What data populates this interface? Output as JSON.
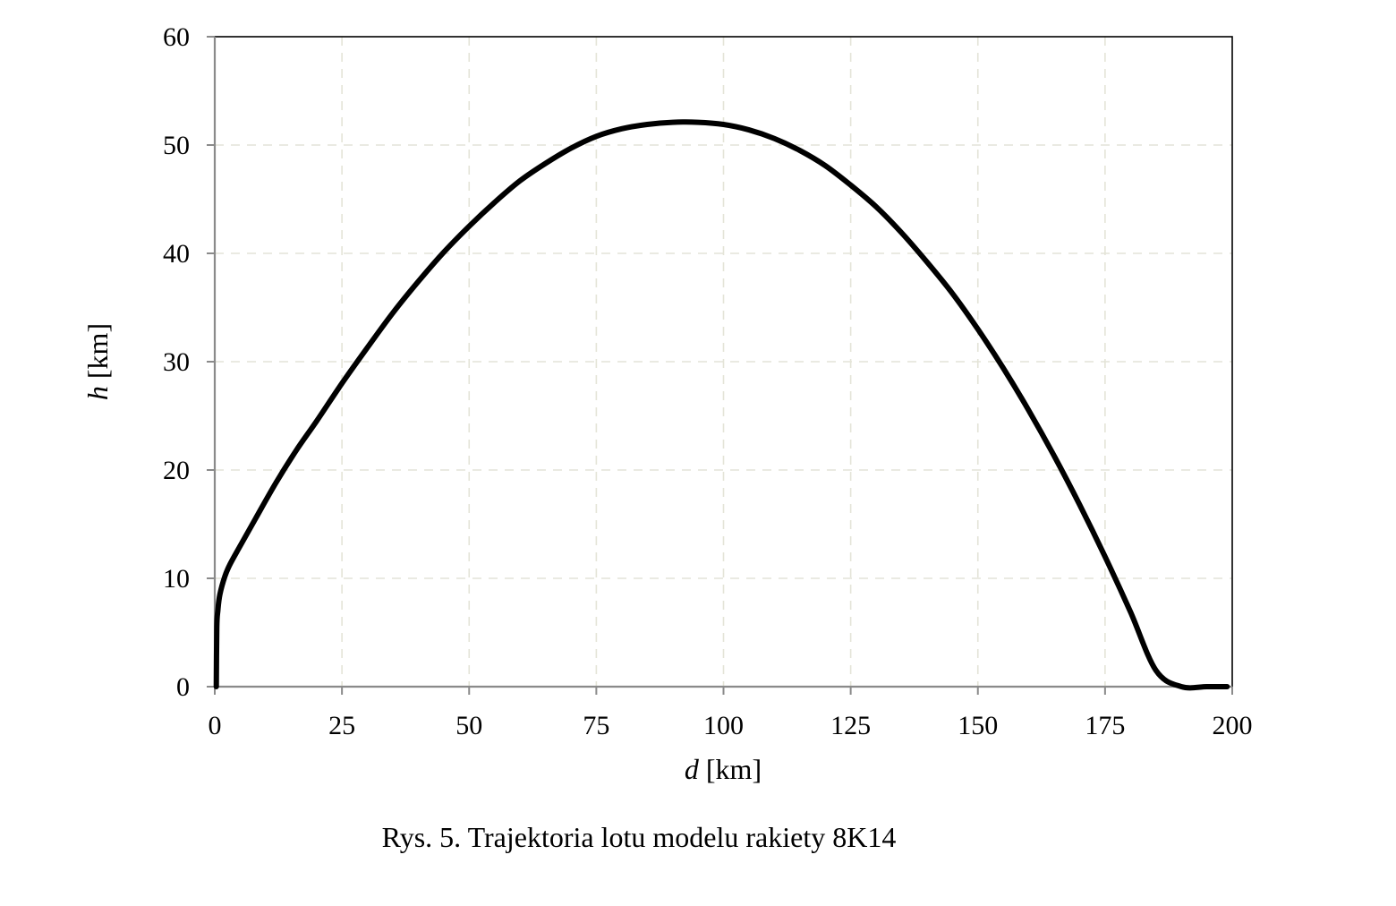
{
  "chart_data": {
    "type": "line",
    "title": "",
    "xlabel_italic": "d",
    "xlabel_unit": "[km]",
    "ylabel_italic": "h",
    "ylabel_unit": "[km]",
    "xlim": [
      0,
      200
    ],
    "ylim": [
      0,
      60
    ],
    "xticks": [
      0,
      25,
      50,
      75,
      100,
      125,
      150,
      175,
      200
    ],
    "yticks": [
      0,
      10,
      20,
      30,
      40,
      50,
      60
    ],
    "grid": true,
    "legend": "none",
    "series": [
      {
        "color": "#000000",
        "x": [
          0.3,
          0.4,
          0.6,
          1,
          2,
          3,
          5,
          8,
          12,
          16,
          20,
          25,
          30,
          35,
          40,
          45,
          50,
          55,
          60,
          65,
          70,
          75,
          80,
          85,
          90,
          95,
          100,
          105,
          110,
          115,
          120,
          125,
          130,
          135,
          140,
          145,
          150,
          155,
          160,
          165,
          170,
          175,
          180,
          185,
          190,
          195,
          199
        ],
        "y": [
          0,
          5.5,
          7,
          8.5,
          10.2,
          11.3,
          13,
          15.5,
          18.8,
          21.8,
          24.5,
          28,
          31.3,
          34.5,
          37.4,
          40.1,
          42.5,
          44.7,
          46.7,
          48.3,
          49.7,
          50.8,
          51.5,
          51.9,
          52.1,
          52.1,
          51.9,
          51.4,
          50.6,
          49.5,
          48.1,
          46.3,
          44.3,
          41.9,
          39.2,
          36.3,
          33.0,
          29.4,
          25.5,
          21.3,
          16.8,
          12.0,
          6.9,
          1.5,
          0,
          0,
          0
        ]
      }
    ]
  },
  "caption": "Rys. 5. Trajektoria lotu modelu rakiety 8K14"
}
